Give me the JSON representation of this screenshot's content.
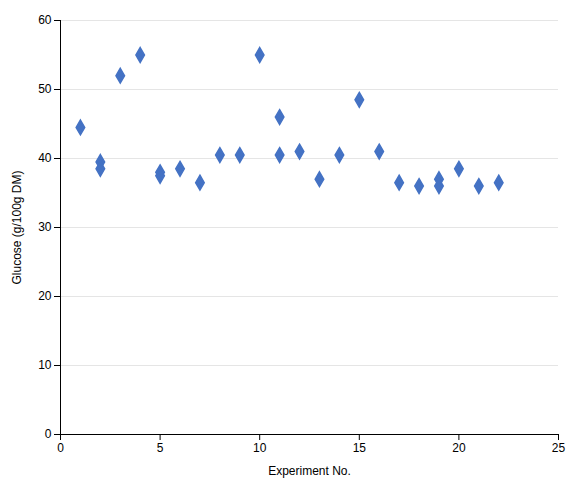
{
  "chart_data": {
    "type": "scatter",
    "xlabel": "Experiment No.",
    "ylabel": "Glucose (g/100g DM)",
    "x": [
      1,
      2,
      2,
      3,
      4,
      5,
      5,
      6,
      7,
      8,
      9,
      10,
      11,
      11,
      12,
      13,
      14,
      15,
      16,
      17,
      18,
      19,
      19,
      20,
      21,
      22
    ],
    "values": [
      44.5,
      39.5,
      38.5,
      52,
      55,
      38,
      37.5,
      38.5,
      36.5,
      40.5,
      40.5,
      55,
      46,
      40.5,
      41,
      37,
      40.5,
      48.5,
      41,
      36.5,
      36,
      37,
      36,
      38.5,
      36,
      36.5
    ],
    "color": "#4472C4",
    "marker": "diamond",
    "xlim": [
      0,
      25
    ],
    "ylim": [
      0,
      60
    ],
    "xticks": [
      0,
      5,
      10,
      15,
      20,
      25
    ],
    "yticks": [
      0,
      10,
      20,
      30,
      40,
      50,
      60
    ],
    "grid": "y"
  }
}
